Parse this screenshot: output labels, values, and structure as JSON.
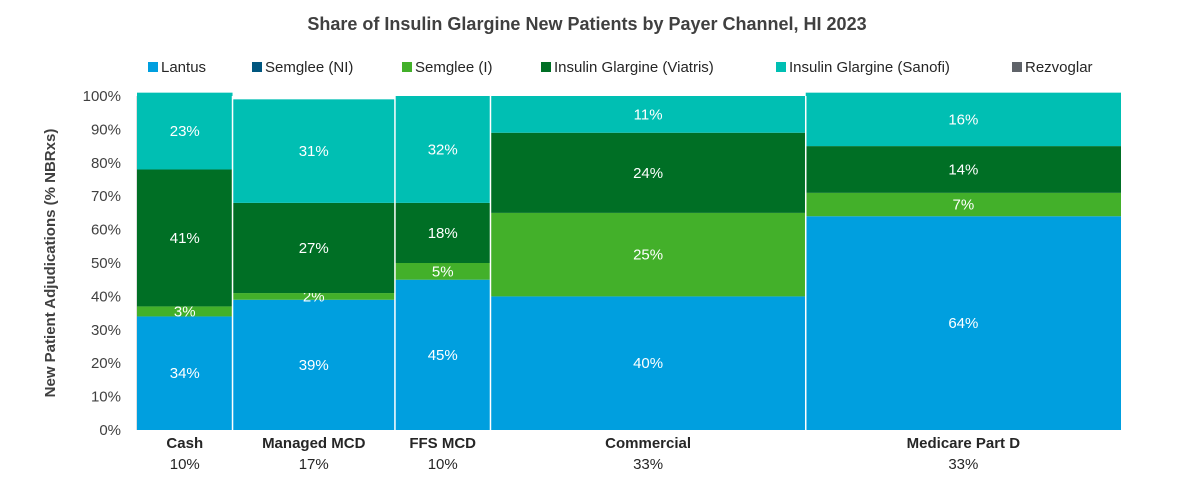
{
  "chart_data": {
    "type": "bar",
    "subtype": "mekko-stacked-100",
    "title": "Share of Insulin Glargine New Patients by Payer Channel, HI 2023",
    "ylabel": "New Patient Adjudications (% NBRxs)",
    "ylim": [
      0,
      100
    ],
    "yticks": [
      "0%",
      "10%",
      "20%",
      "30%",
      "40%",
      "50%",
      "60%",
      "70%",
      "80%",
      "90%",
      "100%"
    ],
    "legend_position": "top",
    "grid": false,
    "categories": [
      {
        "name": "Cash",
        "width_label": "10%",
        "width": 10
      },
      {
        "name": "Managed MCD",
        "width_label": "17%",
        "width": 17
      },
      {
        "name": "FFS MCD",
        "width_label": "10%",
        "width": 10
      },
      {
        "name": "Commercial",
        "width_label": "33%",
        "width": 33
      },
      {
        "name": "Medicare Part D",
        "width_label": "33%",
        "width": 33
      }
    ],
    "series": [
      {
        "name": "Lantus",
        "color": "#009fdf",
        "values": [
          34,
          39,
          45,
          40,
          64
        ],
        "labels": [
          "34%",
          "39%",
          "45%",
          "40%",
          "64%"
        ]
      },
      {
        "name": "Semglee (NI)",
        "color": "#00567f",
        "values": [
          0,
          0,
          0,
          0,
          0
        ],
        "labels": [
          "",
          "",
          "",
          "",
          ""
        ]
      },
      {
        "name": "Semglee (I)",
        "color": "#43b02a",
        "values": [
          3,
          2,
          5,
          25,
          7
        ],
        "labels": [
          "3%",
          "2%",
          "5%",
          "25%",
          "7%"
        ]
      },
      {
        "name": "Insulin Glargine (Viatris)",
        "color": "#006f25",
        "values": [
          41,
          27,
          18,
          24,
          14
        ],
        "labels": [
          "41%",
          "27%",
          "18%",
          "24%",
          "14%"
        ]
      },
      {
        "name": "Insulin Glargine (Sanofi)",
        "color": "#00bfb3",
        "values": [
          23,
          31,
          32,
          11,
          16
        ],
        "labels": [
          "23%",
          "31%",
          "32%",
          "11%",
          "16%"
        ]
      },
      {
        "name": "Rezvoglar",
        "color": "#5f6369",
        "values": [
          0,
          0,
          0,
          0,
          0
        ],
        "labels": [
          "",
          "",
          "",
          "",
          ""
        ]
      }
    ]
  }
}
